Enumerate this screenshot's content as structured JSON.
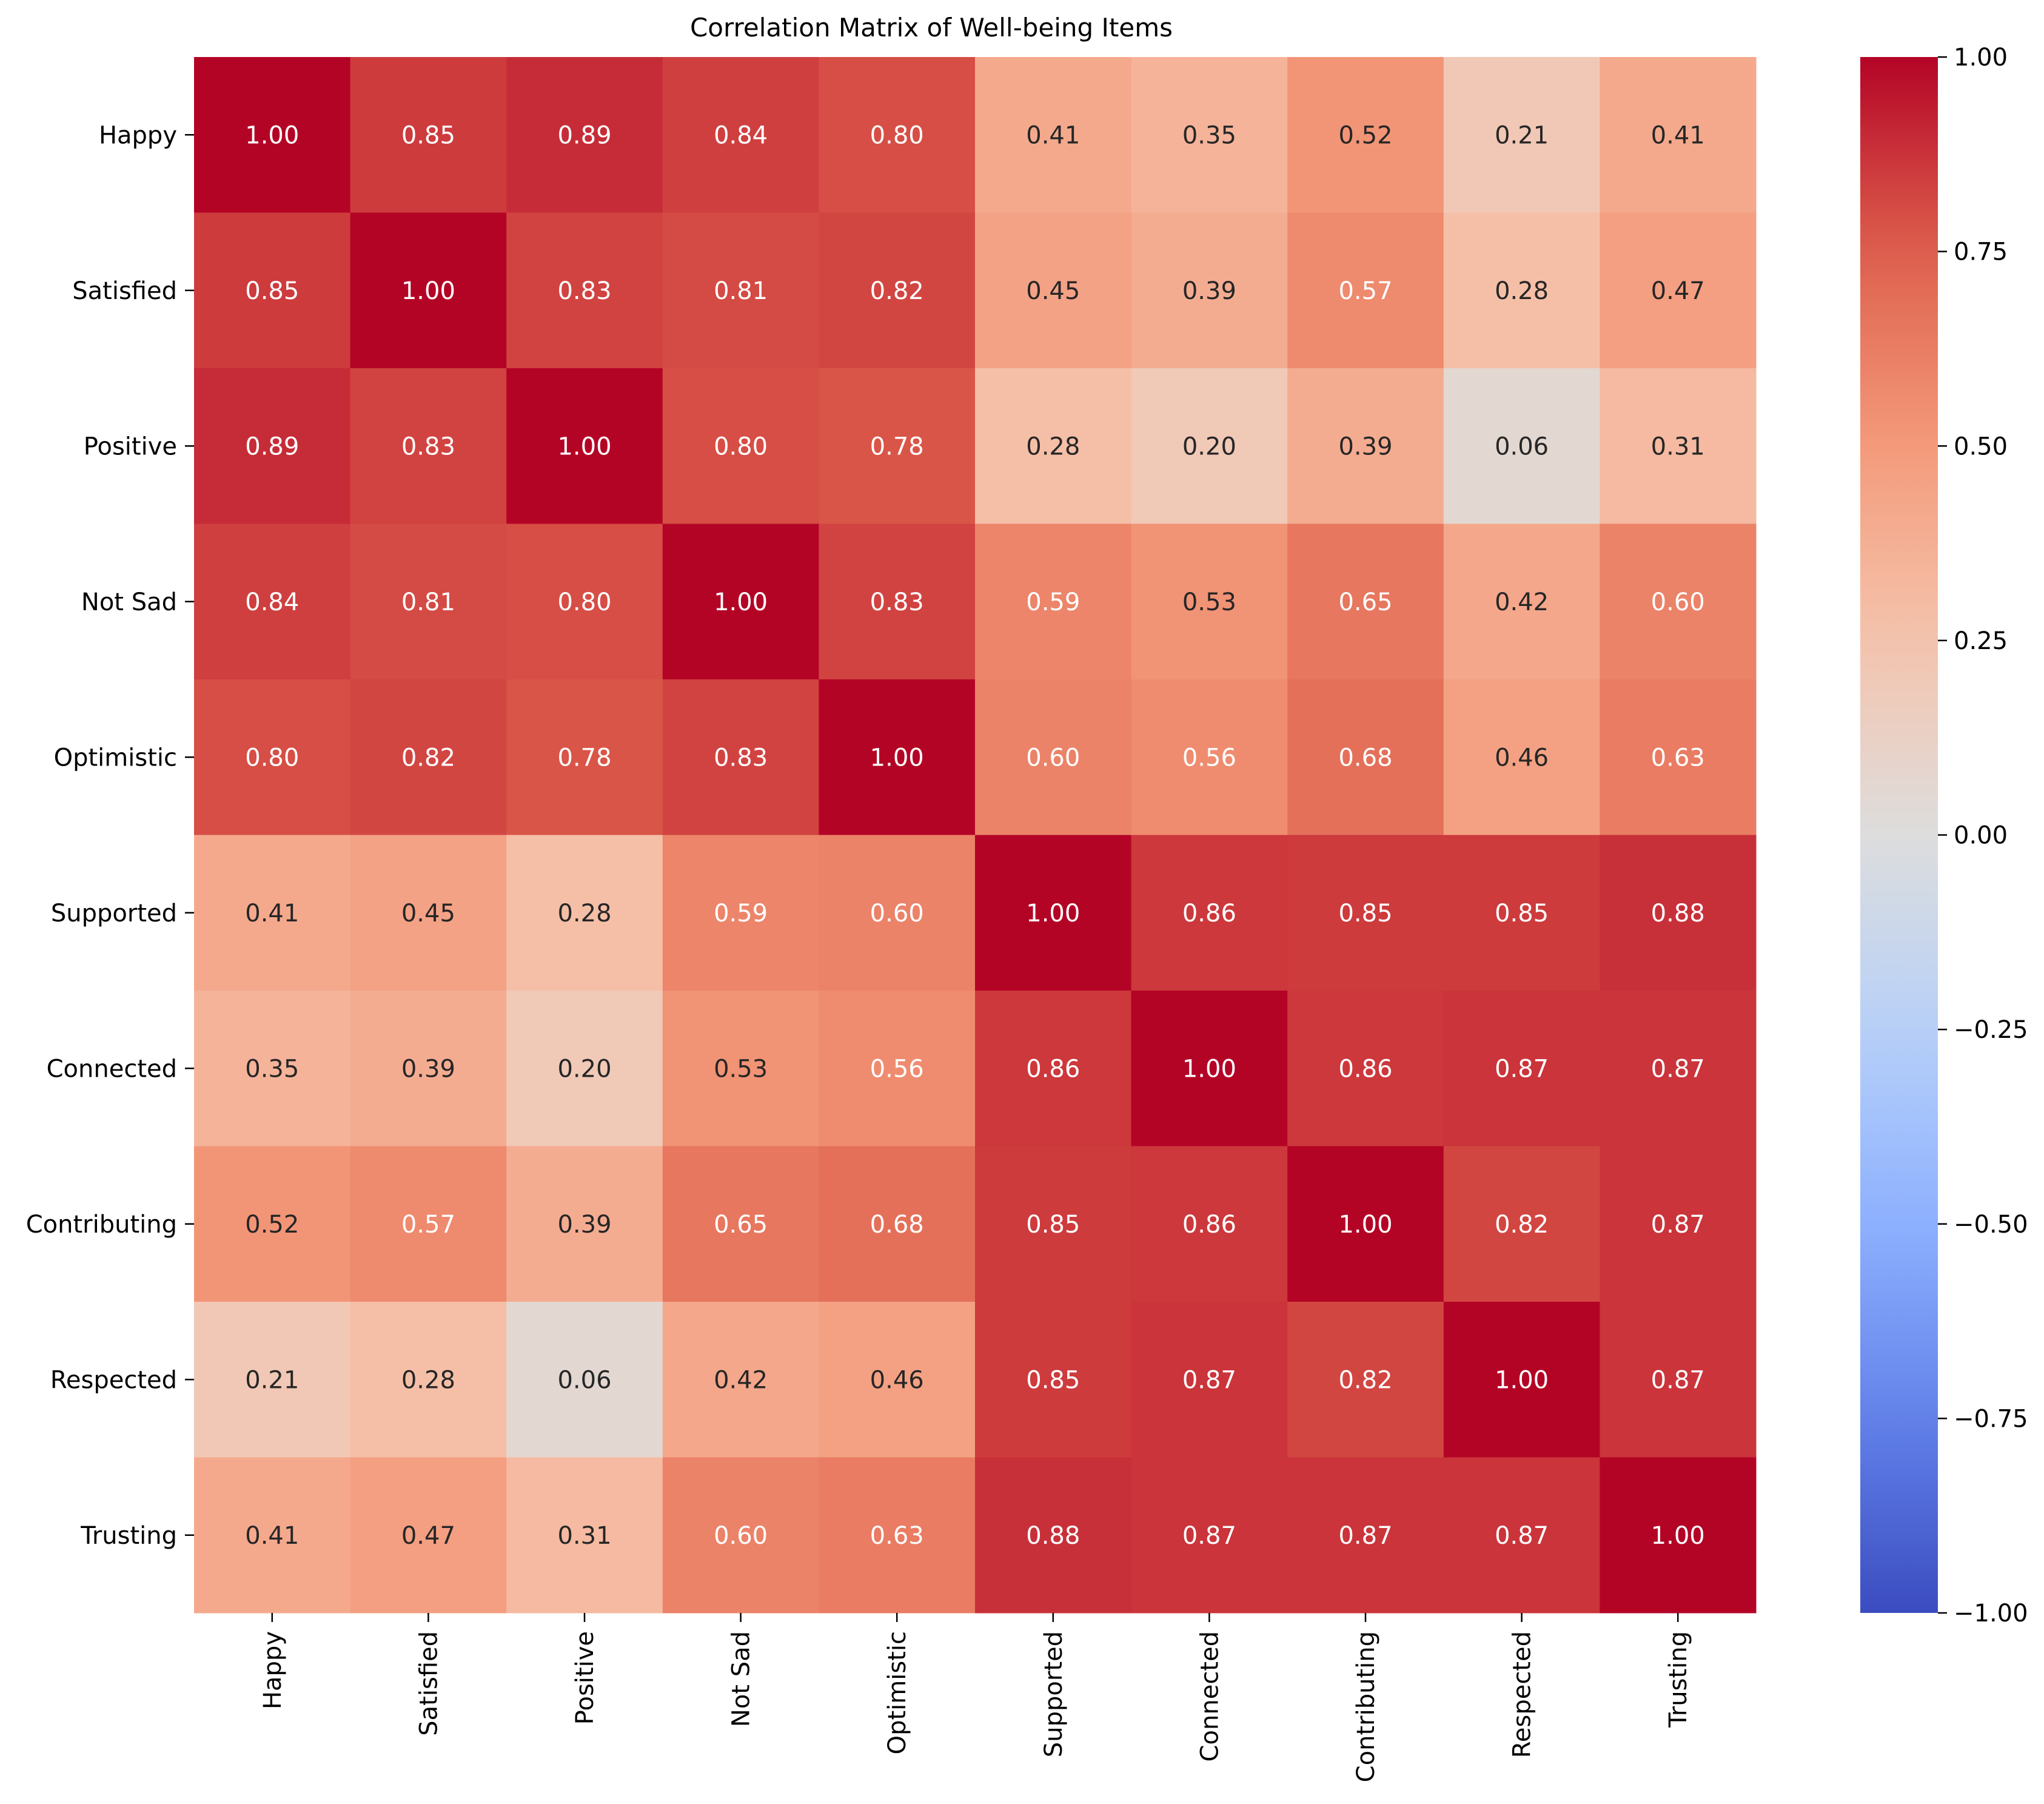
{
  "chart_data": {
    "type": "heatmap",
    "title": "Correlation Matrix of Well-being Items",
    "xlabel": "",
    "ylabel": "",
    "rows": [
      "Happy",
      "Satisfied",
      "Positive",
      "Not Sad",
      "Optimistic",
      "Supported",
      "Connected",
      "Contributing",
      "Respected",
      "Trusting"
    ],
    "columns": [
      "Happy",
      "Satisfied",
      "Positive",
      "Not Sad",
      "Optimistic",
      "Supported",
      "Connected",
      "Contributing",
      "Respected",
      "Trusting"
    ],
    "values": [
      [
        1.0,
        0.85,
        0.89,
        0.84,
        0.8,
        0.41,
        0.35,
        0.52,
        0.21,
        0.41
      ],
      [
        0.85,
        1.0,
        0.83,
        0.81,
        0.82,
        0.45,
        0.39,
        0.57,
        0.28,
        0.47
      ],
      [
        0.89,
        0.83,
        1.0,
        0.8,
        0.78,
        0.28,
        0.2,
        0.39,
        0.06,
        0.31
      ],
      [
        0.84,
        0.81,
        0.8,
        1.0,
        0.83,
        0.59,
        0.53,
        0.65,
        0.42,
        0.6
      ],
      [
        0.8,
        0.82,
        0.78,
        0.83,
        1.0,
        0.6,
        0.56,
        0.68,
        0.46,
        0.63
      ],
      [
        0.41,
        0.45,
        0.28,
        0.59,
        0.6,
        1.0,
        0.86,
        0.85,
        0.85,
        0.88
      ],
      [
        0.35,
        0.39,
        0.2,
        0.53,
        0.56,
        0.86,
        1.0,
        0.86,
        0.87,
        0.87
      ],
      [
        0.52,
        0.57,
        0.39,
        0.65,
        0.68,
        0.85,
        0.86,
        1.0,
        0.82,
        0.87
      ],
      [
        0.21,
        0.28,
        0.06,
        0.42,
        0.46,
        0.85,
        0.87,
        0.82,
        1.0,
        0.87
      ],
      [
        0.41,
        0.47,
        0.31,
        0.6,
        0.63,
        0.88,
        0.87,
        0.87,
        0.87,
        1.0
      ]
    ],
    "value_format": "0.00",
    "colormap": "coolwarm",
    "colorbar": {
      "range": [
        -1.0,
        1.0
      ],
      "ticks": [
        1.0,
        0.75,
        0.5,
        0.25,
        0.0,
        -0.25,
        -0.5,
        -0.75,
        -1.0
      ],
      "tick_labels": [
        "1.00",
        "0.75",
        "0.50",
        "0.25",
        "0.00",
        "−0.25",
        "−0.50",
        "−0.75",
        "−1.00"
      ],
      "placement": "right"
    },
    "grid": false,
    "legend": "none"
  },
  "colors": {
    "low": "#3b4cc0",
    "mid": "#dddddd",
    "high": "#b40426",
    "text_dark": "#262626",
    "text_light": "#ffffff"
  }
}
